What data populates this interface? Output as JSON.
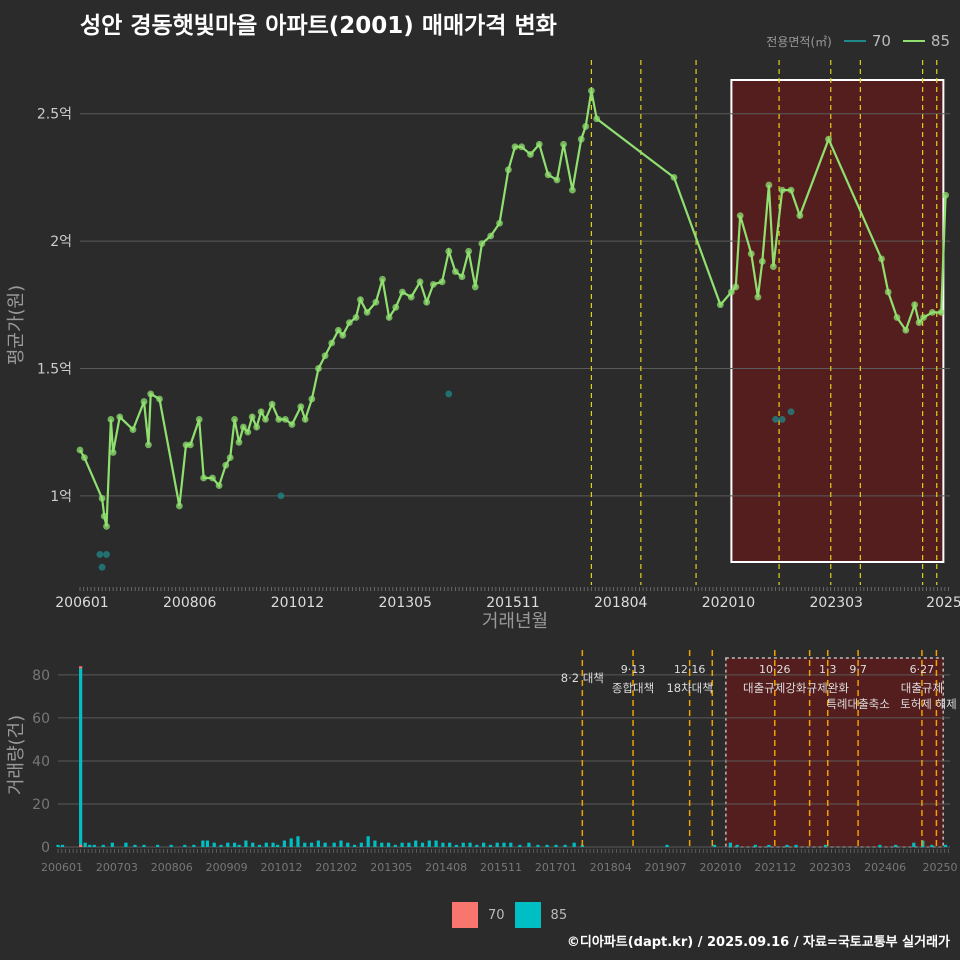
{
  "title": "성안 경동햇빛마을 아파트(2001) 매매가격 변화",
  "legend_top": {
    "title": "전용면적(㎡)",
    "items": [
      {
        "label": "70",
        "color": "#1f8a8c"
      },
      {
        "label": "85",
        "color": "#90e070"
      }
    ]
  },
  "legend_bottom": {
    "items": [
      {
        "label": "70",
        "color": "#f8766d"
      },
      {
        "label": "85",
        "color": "#00bfc4"
      }
    ]
  },
  "footer": "©디아파트(dapt.kr) / 2025.09.16 / 자료=국토교통부 실거래가",
  "chart_data": [
    {
      "type": "line",
      "title": "성안 경동햇빛마을 아파트(2001) 매매가격 변화",
      "xlabel": "거래년월",
      "ylabel": "평균가(원)",
      "x_ticks": [
        "200601",
        "200806",
        "201012",
        "201305",
        "201511",
        "201804",
        "202010",
        "202303",
        "2025"
      ],
      "y_ticks": [
        {
          "v": 1.0,
          "label": "1억"
        },
        {
          "v": 1.5,
          "label": "1.5억"
        },
        {
          "v": 2.0,
          "label": "2억"
        },
        {
          "v": 2.5,
          "label": "2.5억"
        }
      ],
      "xlim": [
        2006.0,
        2025.7
      ],
      "ylim": [
        0.65,
        2.75
      ],
      "highlight_range": [
        2020.75,
        2025.55
      ],
      "policy_lines": [
        2017.58,
        2018.7,
        2019.95,
        2021.83,
        2023.0,
        2023.67,
        2025.08,
        2025.4
      ],
      "series": [
        {
          "name": "85",
          "color": "#90e070",
          "points": [
            [
              2006.0,
              1.18
            ],
            [
              2006.1,
              1.15
            ],
            [
              2006.5,
              0.99
            ],
            [
              2006.55,
              0.92
            ],
            [
              2006.6,
              0.88
            ],
            [
              2006.7,
              1.3
            ],
            [
              2006.75,
              1.17
            ],
            [
              2006.9,
              1.31
            ],
            [
              2007.2,
              1.26
            ],
            [
              2007.45,
              1.37
            ],
            [
              2007.55,
              1.2
            ],
            [
              2007.6,
              1.4
            ],
            [
              2007.8,
              1.38
            ],
            [
              2008.25,
              0.96
            ],
            [
              2008.4,
              1.2
            ],
            [
              2008.5,
              1.2
            ],
            [
              2008.7,
              1.3
            ],
            [
              2008.8,
              1.07
            ],
            [
              2009.0,
              1.07
            ],
            [
              2009.15,
              1.04
            ],
            [
              2009.3,
              1.12
            ],
            [
              2009.4,
              1.15
            ],
            [
              2009.5,
              1.3
            ],
            [
              2009.6,
              1.21
            ],
            [
              2009.7,
              1.27
            ],
            [
              2009.8,
              1.25
            ],
            [
              2009.9,
              1.31
            ],
            [
              2010.0,
              1.27
            ],
            [
              2010.1,
              1.33
            ],
            [
              2010.2,
              1.3
            ],
            [
              2010.35,
              1.36
            ],
            [
              2010.5,
              1.3
            ],
            [
              2010.65,
              1.3
            ],
            [
              2010.8,
              1.28
            ],
            [
              2011.0,
              1.35
            ],
            [
              2011.1,
              1.3
            ],
            [
              2011.25,
              1.38
            ],
            [
              2011.4,
              1.5
            ],
            [
              2011.55,
              1.55
            ],
            [
              2011.7,
              1.6
            ],
            [
              2011.85,
              1.65
            ],
            [
              2011.95,
              1.63
            ],
            [
              2012.1,
              1.68
            ],
            [
              2012.25,
              1.7
            ],
            [
              2012.35,
              1.77
            ],
            [
              2012.5,
              1.72
            ],
            [
              2012.7,
              1.76
            ],
            [
              2012.85,
              1.85
            ],
            [
              2013.0,
              1.7
            ],
            [
              2013.15,
              1.74
            ],
            [
              2013.3,
              1.8
            ],
            [
              2013.5,
              1.78
            ],
            [
              2013.7,
              1.84
            ],
            [
              2013.85,
              1.76
            ],
            [
              2014.0,
              1.83
            ],
            [
              2014.2,
              1.84
            ],
            [
              2014.35,
              1.96
            ],
            [
              2014.5,
              1.88
            ],
            [
              2014.65,
              1.86
            ],
            [
              2014.8,
              1.96
            ],
            [
              2014.95,
              1.82
            ],
            [
              2015.1,
              1.99
            ],
            [
              2015.3,
              2.02
            ],
            [
              2015.5,
              2.07
            ],
            [
              2015.7,
              2.28
            ],
            [
              2015.85,
              2.37
            ],
            [
              2016.0,
              2.37
            ],
            [
              2016.2,
              2.34
            ],
            [
              2016.4,
              2.38
            ],
            [
              2016.6,
              2.26
            ],
            [
              2016.8,
              2.24
            ],
            [
              2016.95,
              2.38
            ],
            [
              2017.15,
              2.2
            ],
            [
              2017.35,
              2.4
            ],
            [
              2017.45,
              2.45
            ],
            [
              2017.58,
              2.59
            ],
            [
              2017.7,
              2.48
            ],
            [
              2019.45,
              2.25
            ],
            [
              2020.5,
              1.75
            ],
            [
              2020.75,
              1.8
            ],
            [
              2020.85,
              1.82
            ],
            [
              2020.95,
              2.1
            ],
            [
              2021.2,
              1.95
            ],
            [
              2021.35,
              1.78
            ],
            [
              2021.45,
              1.92
            ],
            [
              2021.6,
              2.22
            ],
            [
              2021.7,
              1.9
            ],
            [
              2021.9,
              2.2
            ],
            [
              2022.1,
              2.2
            ],
            [
              2022.3,
              2.1
            ],
            [
              2022.95,
              2.4
            ],
            [
              2024.15,
              1.93
            ],
            [
              2024.3,
              1.8
            ],
            [
              2024.5,
              1.7
            ],
            [
              2024.7,
              1.65
            ],
            [
              2024.9,
              1.75
            ],
            [
              2025.0,
              1.68
            ],
            [
              2025.1,
              1.7
            ],
            [
              2025.3,
              1.72
            ],
            [
              2025.5,
              1.72
            ],
            [
              2025.6,
              2.18
            ]
          ]
        },
        {
          "name": "70",
          "color": "#1f8a8c",
          "points": [
            [
              2006.45,
              0.77
            ],
            [
              2006.5,
              0.72
            ],
            [
              2006.6,
              0.77
            ],
            [
              2010.55,
              1.0
            ],
            [
              2014.35,
              1.4
            ],
            [
              2021.75,
              1.3
            ],
            [
              2021.9,
              1.3
            ],
            [
              2022.1,
              1.33
            ]
          ]
        }
      ]
    },
    {
      "type": "bar",
      "ylabel": "거래량(건)",
      "x_ticks": [
        "200601",
        "200703",
        "200806",
        "200909",
        "201012",
        "201202",
        "201305",
        "201408",
        "201511",
        "201701",
        "201804",
        "201907",
        "202010",
        "202112",
        "202303",
        "202406",
        "20250"
      ],
      "y_ticks": [
        0,
        20,
        40,
        60,
        80
      ],
      "ylim": [
        0,
        86
      ],
      "highlight_range": [
        2020.75,
        2025.55
      ],
      "series": [
        {
          "name": "85",
          "color": "#00bfc4",
          "points": [
            [
              2006.0,
              1
            ],
            [
              2006.1,
              1
            ],
            [
              2006.5,
              83
            ],
            [
              2006.6,
              2
            ],
            [
              2006.7,
              1
            ],
            [
              2006.8,
              1
            ],
            [
              2007.0,
              1
            ],
            [
              2007.2,
              2
            ],
            [
              2007.5,
              2
            ],
            [
              2007.7,
              1
            ],
            [
              2007.9,
              1
            ],
            [
              2008.2,
              1
            ],
            [
              2008.5,
              1
            ],
            [
              2008.8,
              1
            ],
            [
              2009.0,
              1
            ],
            [
              2009.2,
              3
            ],
            [
              2009.3,
              3
            ],
            [
              2009.45,
              2
            ],
            [
              2009.6,
              1
            ],
            [
              2009.75,
              2
            ],
            [
              2009.9,
              2
            ],
            [
              2010.0,
              1
            ],
            [
              2010.15,
              3
            ],
            [
              2010.3,
              2
            ],
            [
              2010.45,
              1
            ],
            [
              2010.6,
              2
            ],
            [
              2010.75,
              2
            ],
            [
              2010.85,
              1
            ],
            [
              2011.0,
              3
            ],
            [
              2011.15,
              4
            ],
            [
              2011.3,
              5
            ],
            [
              2011.45,
              2
            ],
            [
              2011.6,
              2
            ],
            [
              2011.75,
              3
            ],
            [
              2011.9,
              2
            ],
            [
              2012.1,
              2
            ],
            [
              2012.25,
              3
            ],
            [
              2012.4,
              2
            ],
            [
              2012.55,
              1
            ],
            [
              2012.7,
              2
            ],
            [
              2012.85,
              5
            ],
            [
              2013.0,
              3
            ],
            [
              2013.15,
              2
            ],
            [
              2013.3,
              2
            ],
            [
              2013.45,
              1
            ],
            [
              2013.6,
              2
            ],
            [
              2013.75,
              2
            ],
            [
              2013.9,
              3
            ],
            [
              2014.05,
              2
            ],
            [
              2014.2,
              3
            ],
            [
              2014.35,
              3
            ],
            [
              2014.5,
              2
            ],
            [
              2014.65,
              2
            ],
            [
              2014.8,
              1
            ],
            [
              2014.95,
              2
            ],
            [
              2015.1,
              2
            ],
            [
              2015.25,
              1
            ],
            [
              2015.4,
              2
            ],
            [
              2015.55,
              1
            ],
            [
              2015.7,
              2
            ],
            [
              2015.85,
              2
            ],
            [
              2016.0,
              2
            ],
            [
              2016.2,
              1
            ],
            [
              2016.4,
              2
            ],
            [
              2016.6,
              1
            ],
            [
              2016.8,
              1
            ],
            [
              2017.0,
              1
            ],
            [
              2017.2,
              1
            ],
            [
              2017.4,
              2
            ],
            [
              2017.58,
              1
            ],
            [
              2019.45,
              1
            ],
            [
              2020.5,
              1
            ],
            [
              2020.85,
              2
            ],
            [
              2021.0,
              1
            ],
            [
              2021.4,
              1
            ],
            [
              2021.7,
              1
            ],
            [
              2022.1,
              1
            ],
            [
              2022.3,
              1
            ],
            [
              2022.95,
              1
            ],
            [
              2024.15,
              1
            ],
            [
              2024.5,
              1
            ],
            [
              2024.9,
              2
            ],
            [
              2025.1,
              3
            ],
            [
              2025.3,
              1
            ],
            [
              2025.6,
              1
            ]
          ]
        },
        {
          "name": "70",
          "color": "#f8766d",
          "points": [
            [
              2006.5,
              1
            ]
          ]
        }
      ],
      "policy_lines": [
        {
          "x": 2017.58,
          "date": "",
          "label": "8·2 대책"
        },
        {
          "x": 2018.7,
          "date": "9·13",
          "label": "종합대책"
        },
        {
          "x": 2019.95,
          "date": "12·16",
          "label": "18차대책"
        },
        {
          "x": 2020.45,
          "date": "",
          "label": ""
        },
        {
          "x": 2021.83,
          "date": "10·26",
          "label": "대출규제강화"
        },
        {
          "x": 2022.6,
          "date": "",
          "label": ""
        },
        {
          "x": 2023.0,
          "date": "1·3",
          "label": "규제완화"
        },
        {
          "x": 2023.67,
          "date": "9·7",
          "label": "특례대출축소"
        },
        {
          "x": 2025.08,
          "date": "6·27",
          "label": "대출규제"
        },
        {
          "x": 2025.4,
          "date": "",
          "label": "토허제 해제"
        }
      ]
    }
  ]
}
